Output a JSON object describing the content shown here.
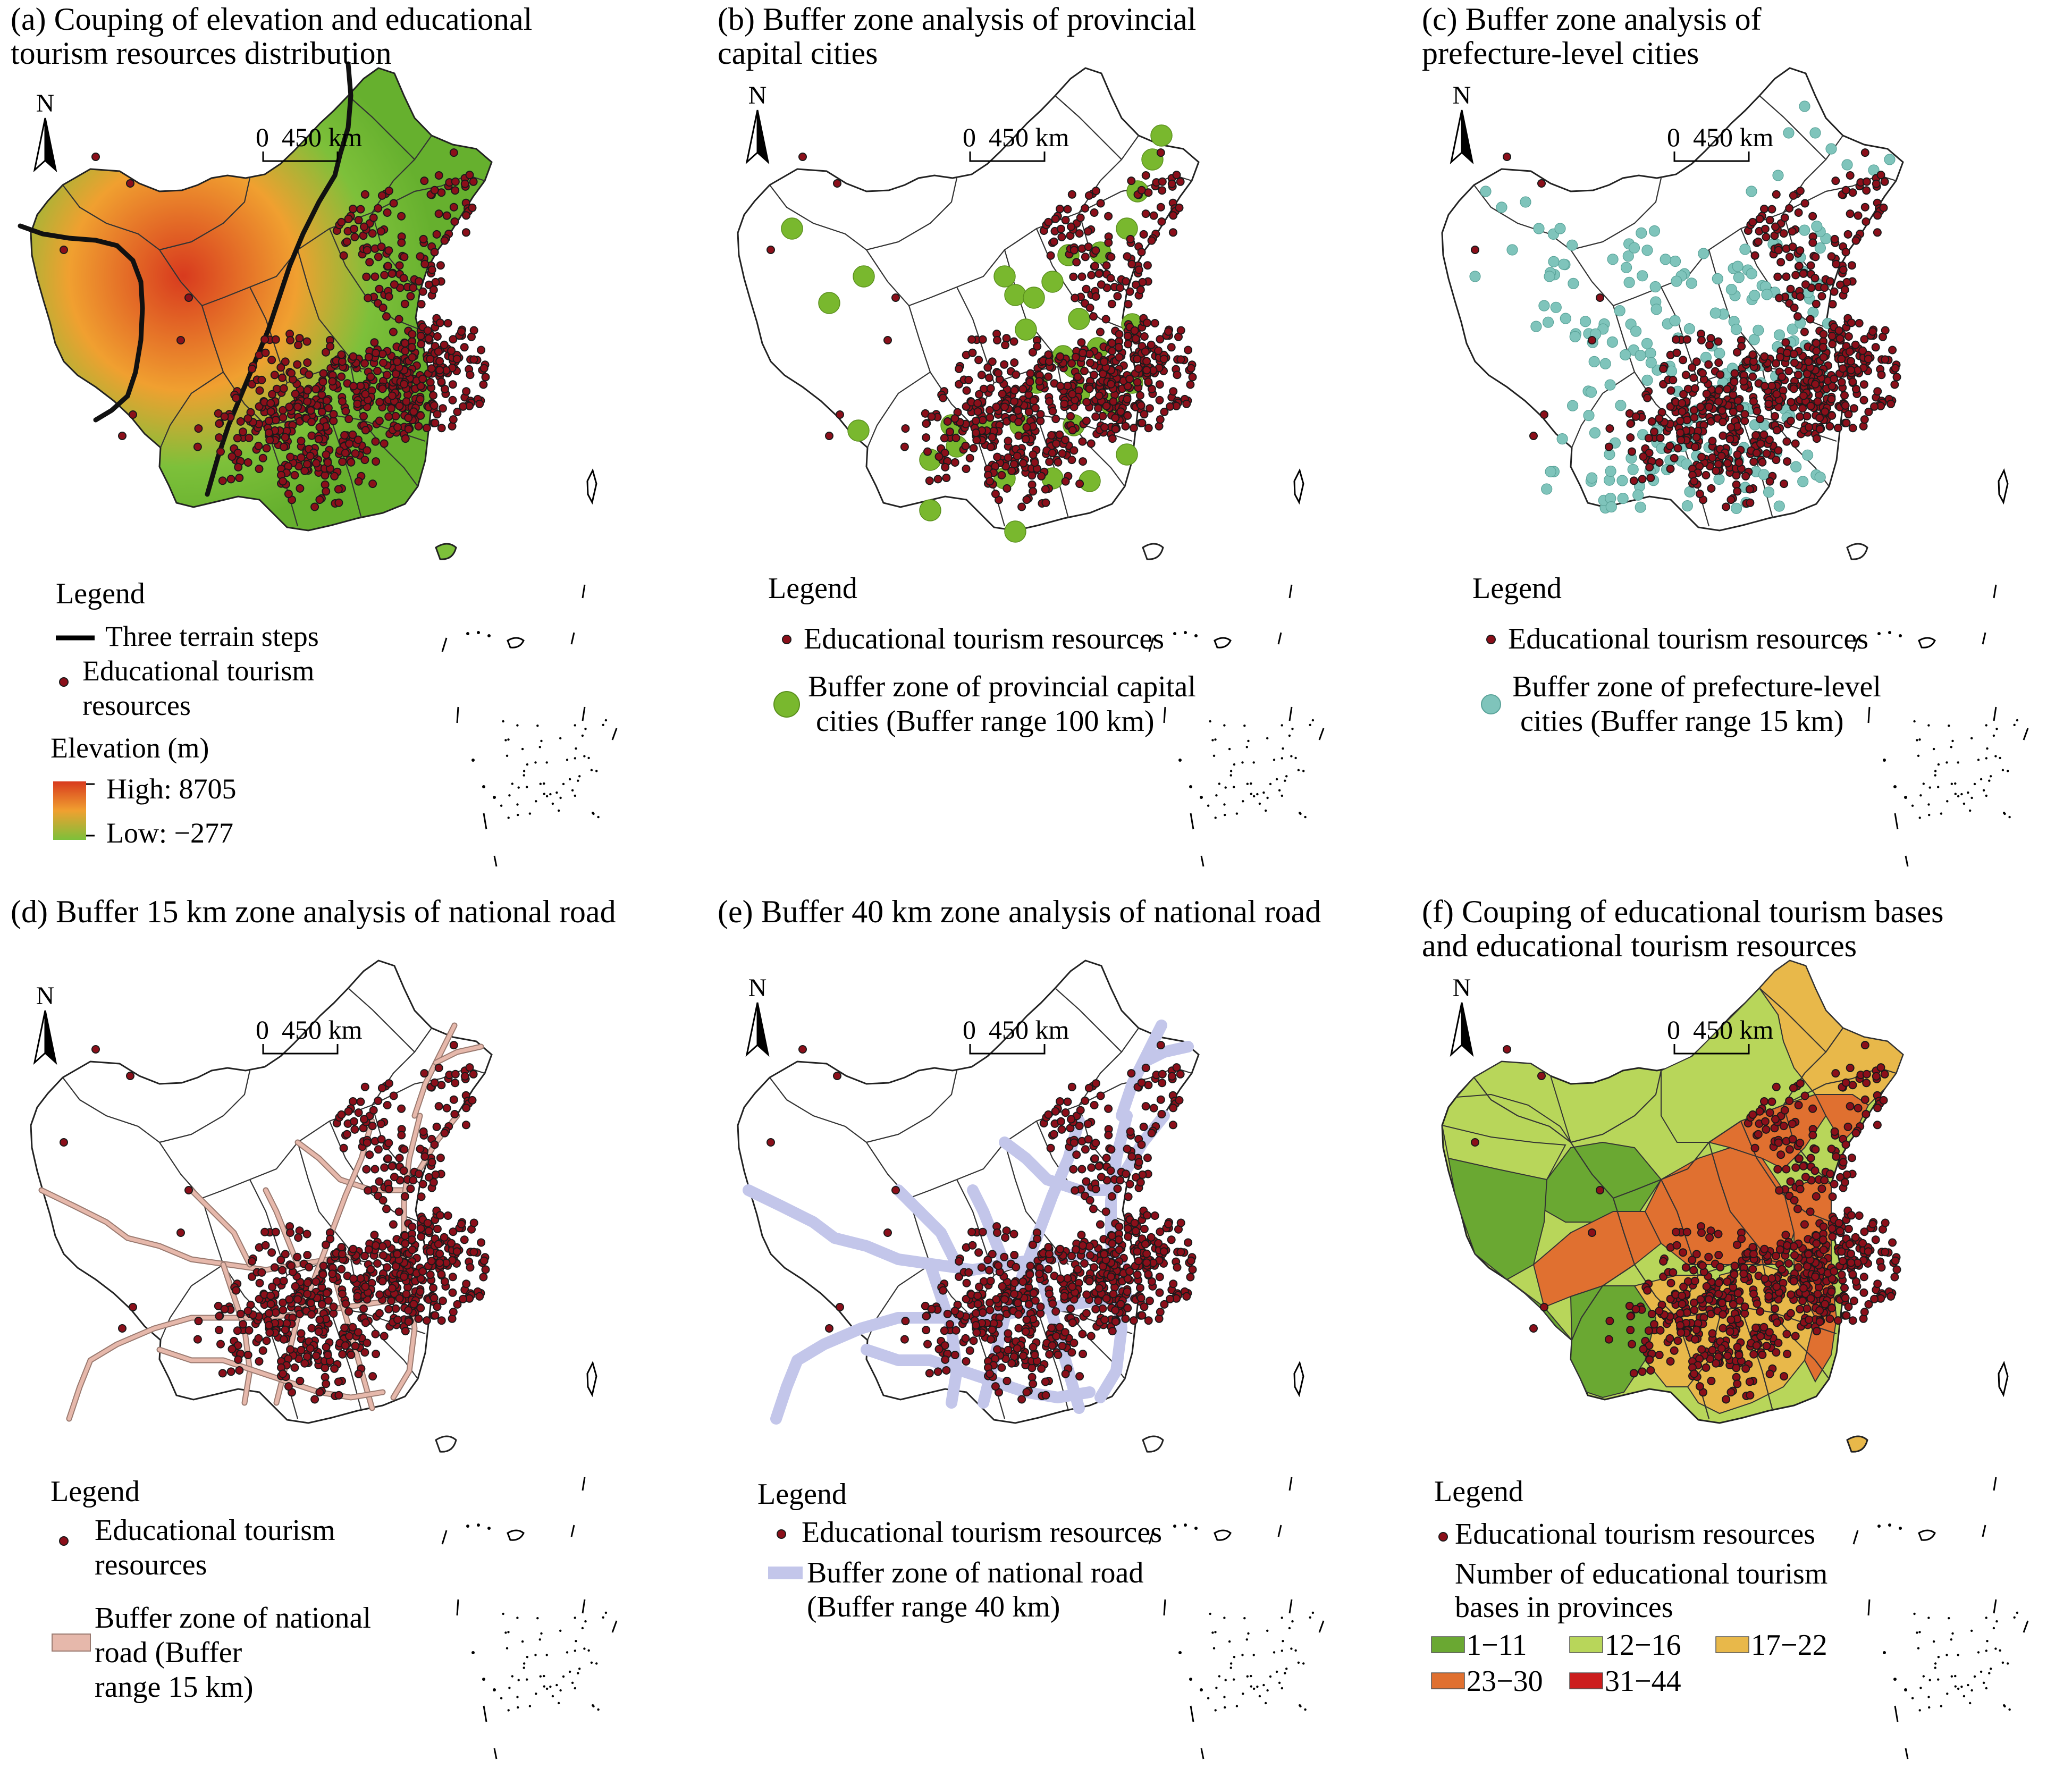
{
  "panels": [
    {
      "id": "a",
      "title_lines": [
        "(a) Couping of elevation and educational",
        "tourism resources distribution"
      ],
      "north": "N",
      "scale": {
        "zero": "0",
        "distance": "450 km"
      },
      "legend": {
        "title": "Legend",
        "terrain_label": "Three terrain steps",
        "points_label_lines": [
          "Educational tourism",
          "resources"
        ],
        "elevation_title": "Elevation (m)",
        "high_label": "High: 8705",
        "low_label": "Low: −277"
      }
    },
    {
      "id": "b",
      "title_lines": [
        "(b) Buffer zone analysis of provincial",
        "capital cities"
      ],
      "north": "N",
      "scale": {
        "zero": "0",
        "distance": "450 km"
      },
      "legend": {
        "title": "Legend",
        "points_label": "Educational tourism resources",
        "buffer_label_lines": [
          "Buffer zone of provincial capital",
          "cities (Buffer range 100 km)"
        ]
      }
    },
    {
      "id": "c",
      "title_lines": [
        "(c) Buffer zone analysis of",
        "prefecture-level cities"
      ],
      "north": "N",
      "scale": {
        "zero": "0",
        "distance": "450 km"
      },
      "legend": {
        "title": "Legend",
        "points_label": "Educational tourism resources",
        "buffer_label_lines": [
          "Buffer zone of prefecture-level",
          "cities (Buffer range 15 km)"
        ]
      }
    },
    {
      "id": "d",
      "title_lines": [
        "(d) Buffer 15 km zone analysis of national road"
      ],
      "north": "N",
      "scale": {
        "zero": "0",
        "distance": "450 km"
      },
      "legend": {
        "title": "Legend",
        "points_label_lines": [
          "Educational tourism",
          "resources"
        ],
        "buffer_label_lines": [
          "Buffer zone of national",
          "road (Buffer",
          "range 15 km)"
        ]
      }
    },
    {
      "id": "e",
      "title_lines": [
        "(e) Buffer 40 km zone analysis of national road"
      ],
      "north": "N",
      "scale": {
        "zero": "0",
        "distance": "450 km"
      },
      "legend": {
        "title": "Legend",
        "points_label": "Educational tourism resources",
        "buffer_label_lines": [
          "Buffer zone of national road",
          "(Buffer range 40 km)"
        ]
      }
    },
    {
      "id": "f",
      "title_lines": [
        "(f) Couping of educational tourism bases",
        "and educational tourism resources"
      ],
      "north": "N",
      "scale": {
        "zero": "0",
        "distance": "450 km"
      },
      "legend": {
        "title": "Legend",
        "points_label": "Educational tourism resources",
        "class_title_lines": [
          "Number of educational tourism",
          "bases in provinces"
        ],
        "classes": [
          {
            "label": "1−11",
            "color": "#6aa832"
          },
          {
            "label": "12−16",
            "color": "#b8d65a"
          },
          {
            "label": "17−22",
            "color": "#e8b84a"
          },
          {
            "label": "23−30",
            "color": "#e07030"
          },
          {
            "label": "31−44",
            "color": "#cc1d1d"
          }
        ]
      }
    }
  ],
  "colors": {
    "point_fill": "#8b0f1a",
    "point_stroke": "#1a1a1a",
    "terrain_line": "#111111",
    "elevation_high": "#d83a1e",
    "elevation_mid": "#f0a030",
    "elevation_low": "#7dc03a",
    "provincial_buffer": "#79b82e",
    "prefecture_buffer": "#7fc4bb",
    "road_buffer_15": "#e6b8ab",
    "road_buffer_40": "#c3c6ea"
  }
}
